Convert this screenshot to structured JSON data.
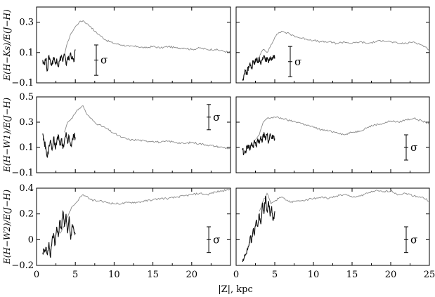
{
  "figure": {
    "xlabel": "|Z|, kpc",
    "sigma_symbol": "σ"
  },
  "colors": {
    "near": "#111111",
    "far": "#8a8a8a",
    "frame": "#000000"
  },
  "chart_data": [
    {
      "id": "row1-left",
      "type": "line",
      "ylabel": "E(H−Ks)/E(J−H)",
      "xlim": [
        0,
        25
      ],
      "ylim": [
        -0.1,
        0.4
      ],
      "xticks": [
        0,
        5,
        10,
        15,
        20,
        25
      ],
      "xticklabels": [
        "",
        "",
        "",
        "",
        "",
        ""
      ],
      "yticks": [
        -0.1,
        0.1,
        0.3
      ],
      "yticklabels": [
        "−0.1",
        "0.1",
        "0.3"
      ],
      "series": [
        {
          "color": "#8a8a8a",
          "x": [
            3.6,
            4.0,
            4.5,
            5.0,
            5.5,
            6.0,
            6.5,
            7.0,
            7.5,
            8.0,
            9.0,
            10.0,
            11.0,
            12.0,
            13.0,
            14.0,
            15.0,
            16.0,
            17.0,
            18.0,
            19.0,
            20.0,
            21.0,
            22.0,
            23.0,
            24.0,
            25.0
          ],
          "y": [
            0.08,
            0.17,
            0.23,
            0.27,
            0.3,
            0.31,
            0.29,
            0.27,
            0.24,
            0.22,
            0.18,
            0.16,
            0.15,
            0.14,
            0.14,
            0.13,
            0.14,
            0.13,
            0.14,
            0.13,
            0.13,
            0.12,
            0.13,
            0.12,
            0.12,
            0.11,
            0.1
          ]
        },
        {
          "color": "#111111",
          "x": [
            0.8,
            1.0,
            1.2,
            1.4,
            1.6,
            1.8,
            2.0,
            2.2,
            2.4,
            2.6,
            2.8,
            3.0,
            3.2,
            3.4,
            3.6,
            3.8,
            4.0,
            4.2,
            4.4,
            4.6,
            4.8,
            5.0
          ],
          "y": [
            0.05,
            0.03,
            0.06,
            -0.02,
            0.08,
            0.04,
            0.02,
            0.07,
            0.03,
            0.06,
            0.01,
            0.05,
            0.08,
            0.04,
            0.09,
            0.02,
            0.07,
            0.05,
            0.1,
            0.06,
            0.04,
            0.12
          ]
        }
      ],
      "sigma_bar": {
        "x": 7.7,
        "y": 0.05,
        "half": 0.1
      }
    },
    {
      "id": "row1-right",
      "type": "line",
      "ylabel": "",
      "xlim": [
        0,
        25
      ],
      "ylim": [
        -0.1,
        0.4
      ],
      "xticks": [
        0,
        5,
        10,
        15,
        20,
        25
      ],
      "xticklabels": [
        "",
        "",
        "",
        "",
        "",
        ""
      ],
      "yticks": [
        -0.1,
        0.1,
        0.3
      ],
      "yticklabels": [
        "",
        "",
        ""
      ],
      "series": [
        {
          "color": "#8a8a8a",
          "x": [
            3.0,
            3.5,
            4.0,
            4.5,
            5.0,
            5.5,
            6.0,
            7.0,
            8.0,
            9.0,
            10.0,
            11.0,
            12.0,
            13.0,
            14.0,
            15.0,
            16.0,
            17.0,
            18.0,
            19.0,
            20.0,
            21.0,
            22.0,
            23.0,
            24.0,
            25.0
          ],
          "y": [
            0.08,
            0.12,
            0.1,
            0.15,
            0.2,
            0.23,
            0.24,
            0.22,
            0.2,
            0.19,
            0.18,
            0.17,
            0.17,
            0.16,
            0.17,
            0.16,
            0.17,
            0.16,
            0.17,
            0.18,
            0.17,
            0.16,
            0.16,
            0.17,
            0.15,
            0.12
          ]
        },
        {
          "color": "#111111",
          "x": [
            0.8,
            1.0,
            1.2,
            1.4,
            1.6,
            1.8,
            2.0,
            2.2,
            2.4,
            2.6,
            2.8,
            3.0,
            3.2,
            3.4,
            3.6,
            3.8,
            4.0,
            4.2,
            4.4,
            4.6,
            4.8,
            5.0
          ],
          "y": [
            -0.08,
            -0.05,
            -0.02,
            -0.04,
            0.01,
            0.03,
            0.0,
            0.04,
            0.02,
            0.06,
            0.03,
            0.07,
            0.02,
            0.05,
            0.08,
            0.04,
            0.06,
            0.03,
            0.07,
            0.05,
            0.08,
            0.06
          ]
        }
      ],
      "sigma_bar": {
        "x": 7.0,
        "y": 0.04,
        "half": 0.1
      }
    },
    {
      "id": "row2-left",
      "type": "line",
      "ylabel": "E(H−W1)/E(J−H)",
      "xlim": [
        0,
        25
      ],
      "ylim": [
        -0.1,
        0.5
      ],
      "xticks": [
        0,
        5,
        10,
        15,
        20,
        25
      ],
      "xticklabels": [
        "",
        "",
        "",
        "",
        "",
        ""
      ],
      "yticks": [
        -0.1,
        0.1,
        0.3,
        0.5
      ],
      "yticklabels": [
        "−0.1",
        "0.1",
        "0.3",
        "0.5"
      ],
      "series": [
        {
          "color": "#8a8a8a",
          "x": [
            3.6,
            4.0,
            4.5,
            5.0,
            5.5,
            6.0,
            6.5,
            7.0,
            7.5,
            8.0,
            9.0,
            10.0,
            11.0,
            12.0,
            13.0,
            14.0,
            15.0,
            16.0,
            17.0,
            18.0,
            19.0,
            20.0,
            21.0,
            22.0,
            23.0,
            24.0,
            25.0
          ],
          "y": [
            0.22,
            0.3,
            0.33,
            0.37,
            0.41,
            0.43,
            0.36,
            0.33,
            0.3,
            0.28,
            0.25,
            0.21,
            0.18,
            0.16,
            0.16,
            0.15,
            0.15,
            0.14,
            0.15,
            0.14,
            0.13,
            0.14,
            0.13,
            0.12,
            0.11,
            0.1,
            0.09
          ]
        },
        {
          "color": "#111111",
          "x": [
            0.8,
            1.0,
            1.2,
            1.4,
            1.6,
            1.8,
            2.0,
            2.2,
            2.4,
            2.6,
            2.8,
            3.0,
            3.2,
            3.4,
            3.6,
            3.8,
            4.0,
            4.2,
            4.4,
            4.6,
            4.8,
            5.0
          ],
          "y": [
            0.21,
            0.14,
            0.1,
            0.02,
            0.12,
            0.16,
            0.08,
            0.18,
            0.1,
            0.14,
            0.2,
            0.12,
            0.17,
            0.09,
            0.15,
            0.22,
            0.13,
            0.19,
            0.11,
            0.16,
            0.2,
            0.18
          ]
        }
      ],
      "sigma_bar": {
        "x": 22.2,
        "y": 0.34,
        "half": 0.1
      }
    },
    {
      "id": "row2-right",
      "type": "line",
      "ylabel": "",
      "xlim": [
        0,
        25
      ],
      "ylim": [
        -0.1,
        0.5
      ],
      "xticks": [
        0,
        5,
        10,
        15,
        20,
        25
      ],
      "xticklabels": [
        "",
        "",
        "",
        "",
        "",
        ""
      ],
      "yticks": [
        -0.1,
        0.1,
        0.3,
        0.5
      ],
      "yticklabels": [
        "",
        "",
        "",
        ""
      ],
      "series": [
        {
          "color": "#8a8a8a",
          "x": [
            2.5,
            3.0,
            3.5,
            4.0,
            5.0,
            6.0,
            7.0,
            8.0,
            9.0,
            10.0,
            11.0,
            12.0,
            13.0,
            14.0,
            15.0,
            16.0,
            17.0,
            18.0,
            19.0,
            20.0,
            21.0,
            22.0,
            23.0,
            24.0,
            25.0
          ],
          "y": [
            0.16,
            0.2,
            0.3,
            0.33,
            0.34,
            0.33,
            0.31,
            0.3,
            0.28,
            0.26,
            0.24,
            0.23,
            0.22,
            0.2,
            0.22,
            0.23,
            0.26,
            0.28,
            0.29,
            0.31,
            0.3,
            0.32,
            0.33,
            0.31,
            0.29
          ]
        },
        {
          "color": "#111111",
          "x": [
            0.8,
            1.0,
            1.2,
            1.4,
            1.6,
            1.8,
            2.0,
            2.2,
            2.4,
            2.6,
            2.8,
            3.0,
            3.2,
            3.4,
            3.6,
            3.8,
            4.0,
            4.2,
            4.4,
            4.6,
            4.8,
            5.0
          ],
          "y": [
            0.08,
            0.05,
            0.07,
            0.1,
            0.12,
            0.08,
            0.14,
            0.1,
            0.15,
            0.11,
            0.17,
            0.13,
            0.19,
            0.15,
            0.22,
            0.16,
            0.2,
            0.14,
            0.21,
            0.17,
            0.19,
            0.17
          ]
        }
      ],
      "sigma_bar": {
        "x": 22.0,
        "y": 0.1,
        "half": 0.1
      }
    },
    {
      "id": "row3-left",
      "type": "line",
      "ylabel": "E(H−W2)/E(J−H)",
      "xlim": [
        0,
        25
      ],
      "ylim": [
        -0.2,
        0.4
      ],
      "xticks": [
        0,
        5,
        10,
        15,
        20,
        25
      ],
      "xticklabels": [
        "0",
        "5",
        "10",
        "15",
        "20",
        ""
      ],
      "yticks": [
        -0.2,
        0.0,
        0.2,
        0.4
      ],
      "yticklabels": [
        "−0.2",
        "0",
        "0.2",
        "0.4"
      ],
      "series": [
        {
          "color": "#8a8a8a",
          "x": [
            3.0,
            3.5,
            4.0,
            4.5,
            5.0,
            5.5,
            6.0,
            7.0,
            8.0,
            9.0,
            10.0,
            11.0,
            12.0,
            13.0,
            14.0,
            15.0,
            16.0,
            17.0,
            18.0,
            19.0,
            20.0,
            21.0,
            22.0,
            23.0,
            24.0,
            25.0
          ],
          "y": [
            0.05,
            0.1,
            0.18,
            0.25,
            0.28,
            0.32,
            0.35,
            0.31,
            0.3,
            0.29,
            0.28,
            0.28,
            0.29,
            0.29,
            0.3,
            0.31,
            0.32,
            0.32,
            0.33,
            0.34,
            0.35,
            0.36,
            0.35,
            0.37,
            0.38,
            0.39
          ]
        },
        {
          "color": "#111111",
          "x": [
            0.8,
            1.0,
            1.2,
            1.4,
            1.6,
            1.8,
            2.0,
            2.2,
            2.4,
            2.6,
            2.8,
            3.0,
            3.2,
            3.4,
            3.6,
            3.8,
            4.0,
            4.2,
            4.4,
            4.6,
            4.8,
            5.0
          ],
          "y": [
            -0.1,
            -0.08,
            -0.06,
            -0.12,
            -0.02,
            -0.14,
            0.0,
            0.05,
            -0.04,
            0.1,
            0.02,
            0.15,
            0.08,
            0.22,
            0.1,
            0.2,
            0.05,
            0.18,
            0.0,
            0.12,
            0.08,
            0.05
          ]
        }
      ],
      "sigma_bar": {
        "x": 22.2,
        "y": 0.0,
        "half": 0.1
      }
    },
    {
      "id": "row3-right",
      "type": "line",
      "ylabel": "",
      "xlim": [
        0,
        25
      ],
      "ylim": [
        -0.2,
        0.4
      ],
      "xticks": [
        0,
        5,
        10,
        15,
        20,
        25
      ],
      "xticklabels": [
        "0",
        "5",
        "10",
        "15",
        "20",
        "25"
      ],
      "yticks": [
        -0.2,
        0.0,
        0.2,
        0.4
      ],
      "yticklabels": [
        "",
        "",
        "",
        ""
      ],
      "series": [
        {
          "color": "#8a8a8a",
          "x": [
            3.0,
            3.5,
            4.0,
            4.5,
            5.0,
            5.5,
            6.0,
            7.0,
            8.0,
            9.0,
            10.0,
            11.0,
            12.0,
            13.0,
            14.0,
            15.0,
            16.0,
            17.0,
            18.0,
            19.0,
            20.0,
            21.0,
            22.0,
            23.0,
            24.0,
            25.0
          ],
          "y": [
            0.22,
            0.3,
            0.36,
            0.28,
            0.3,
            0.32,
            0.33,
            0.29,
            0.3,
            0.31,
            0.32,
            0.33,
            0.32,
            0.34,
            0.35,
            0.33,
            0.34,
            0.36,
            0.38,
            0.37,
            0.38,
            0.35,
            0.36,
            0.34,
            0.33,
            0.3
          ]
        },
        {
          "color": "#111111",
          "x": [
            0.8,
            1.0,
            1.2,
            1.4,
            1.6,
            1.8,
            2.0,
            2.2,
            2.4,
            2.6,
            2.8,
            3.0,
            3.2,
            3.4,
            3.6,
            3.8,
            4.0,
            4.2,
            4.4,
            4.6,
            4.8,
            5.0
          ],
          "y": [
            -0.17,
            -0.15,
            -0.12,
            -0.08,
            -0.05,
            0.02,
            -0.02,
            0.08,
            0.05,
            0.15,
            0.1,
            0.2,
            0.12,
            0.28,
            0.2,
            0.34,
            0.22,
            0.3,
            0.18,
            0.26,
            0.15,
            0.22
          ]
        }
      ],
      "sigma_bar": {
        "x": 22.0,
        "y": 0.0,
        "half": 0.1
      }
    }
  ]
}
